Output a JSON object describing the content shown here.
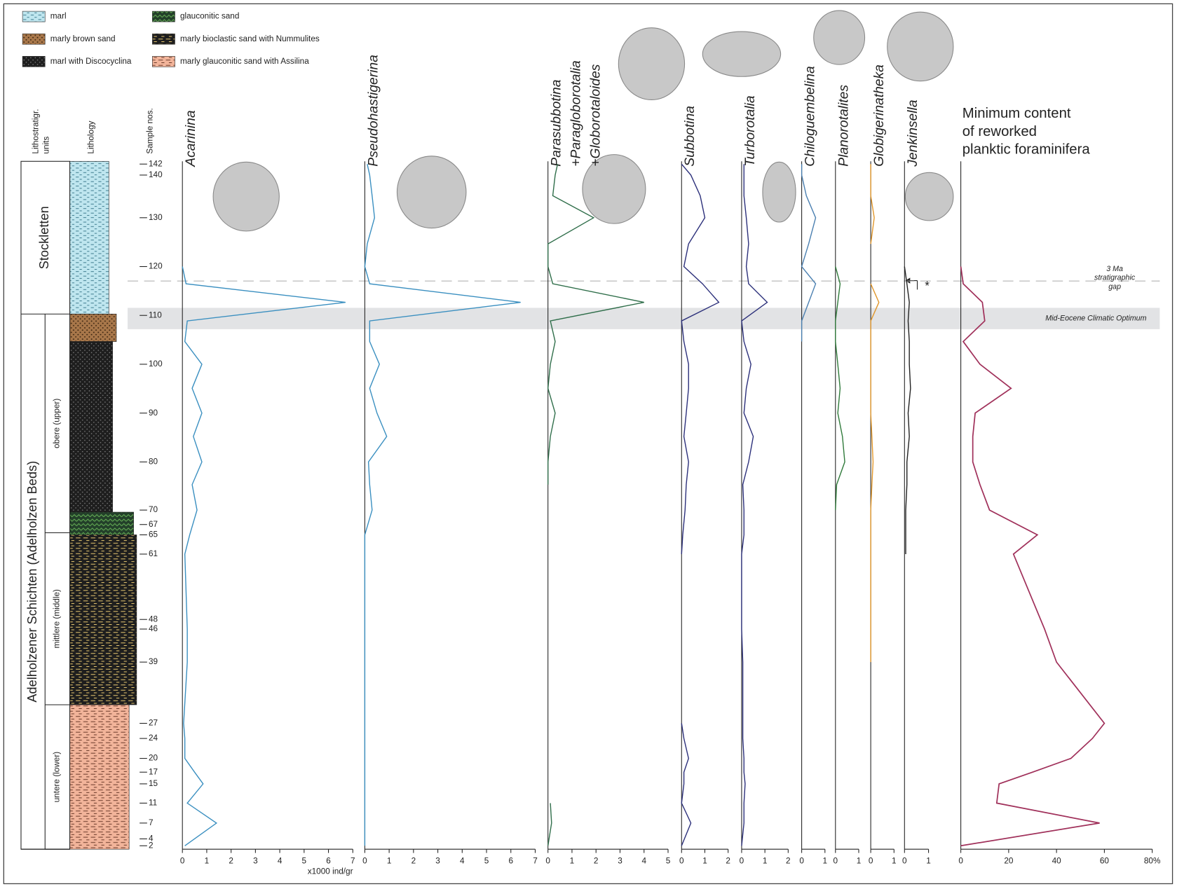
{
  "chart_data": {
    "type": "line",
    "ylim": [
      0,
      100
    ],
    "levels": [
      0.5,
      3.8,
      6.7,
      9.5,
      11.2,
      13.2,
      16.1,
      18.3,
      27.2,
      32.0,
      42.9,
      45.7,
      49.3,
      53,
      56.3,
      60,
      63.4,
      67,
      70.5,
      73.8,
      76.8,
      79.5,
      82.2,
      84.7,
      88,
      91.8,
      95,
      98,
      99.6
    ],
    "yticks": [
      {
        "value": 99.6,
        "label": "142"
      },
      {
        "value": 98.0,
        "label": "140"
      },
      {
        "value": 91.8,
        "label": "130"
      },
      {
        "value": 84.7,
        "label": "120"
      },
      {
        "value": 77.6,
        "label": "110"
      },
      {
        "value": 70.5,
        "label": "100"
      },
      {
        "value": 63.4,
        "label": "90"
      },
      {
        "value": 56.3,
        "label": "80"
      },
      {
        "value": 49.3,
        "label": "70"
      },
      {
        "value": 47.2,
        "label": "67"
      },
      {
        "value": 45.7,
        "label": "65"
      },
      {
        "value": 42.9,
        "label": "61"
      },
      {
        "value": 33.4,
        "label": "48"
      },
      {
        "value": 32.0,
        "label": "46"
      },
      {
        "value": 27.2,
        "label": "39"
      },
      {
        "value": 18.3,
        "label": "27"
      },
      {
        "value": 16.1,
        "label": "24"
      },
      {
        "value": 13.2,
        "label": "20"
      },
      {
        "value": 11.2,
        "label": "17"
      },
      {
        "value": 9.5,
        "label": "15"
      },
      {
        "value": 6.7,
        "label": "11"
      },
      {
        "value": 3.8,
        "label": "7"
      },
      {
        "value": 1.5,
        "label": "4"
      },
      {
        "value": 0.5,
        "label": "2"
      }
    ],
    "lithostrat_header": [
      "Lithostratigr.",
      "units"
    ],
    "lithology_header": "Lithology",
    "sample_header": "Sample nos.",
    "x_unit_label": "x1000 ind/gr",
    "lithology": [
      {
        "label": "marl",
        "beds": [
          [
            77.8,
            100
          ]
        ]
      },
      {
        "label": "marly brown sand",
        "beds": [
          [
            73.8,
            77.8
          ]
        ]
      },
      {
        "label": "marl with Discocyclina",
        "beds": [
          [
            49,
            73.8
          ]
        ]
      },
      {
        "label": "glauconitic sand",
        "beds": [
          [
            45.7,
            49
          ]
        ]
      },
      {
        "label": "marly bioclastic sand with Nummulites",
        "beds": [
          [
            21,
            45.7
          ]
        ]
      },
      {
        "label": "marly glauconitic sand with Assilina",
        "beds": [
          [
            0,
            21
          ]
        ]
      }
    ],
    "formations": [
      {
        "name": "Stockletten",
        "from": 77.8,
        "to": 100
      },
      {
        "name": "Adelholzener Schichten (Adelholzen Beds)",
        "from": 0,
        "to": 77.8
      }
    ],
    "members": [
      {
        "name": "obere (upper)",
        "from": 46,
        "to": 77.8
      },
      {
        "name": "mittlere (middle)",
        "from": 21,
        "to": 46
      },
      {
        "name": "untere (lower)",
        "from": 0,
        "to": 21
      }
    ],
    "panels": [
      {
        "title": [
          "Acarinina"
        ],
        "color": "#3a8fc0",
        "xlim": [
          0,
          7
        ],
        "xticks": [
          0,
          1,
          2,
          3,
          4,
          5,
          6,
          7
        ],
        "values": [
          0.1,
          1.4,
          0.2,
          0.85,
          0.5,
          0.1,
          0.1,
          0.05,
          0.2,
          0.2,
          0.1,
          0.3,
          0.6,
          0.4,
          0.8,
          0.45,
          0.8,
          0.4,
          0.8,
          0.1,
          0.2,
          6.7,
          0.15,
          0,
          null,
          null,
          null,
          null,
          null
        ]
      },
      {
        "title": [
          "Pseudohastigerina"
        ],
        "color": "#3a8fc0",
        "xlim": [
          0,
          7
        ],
        "xticks": [
          0,
          1,
          2,
          3,
          4,
          5,
          6,
          7
        ],
        "values": [
          0,
          0,
          0,
          0,
          0,
          0,
          0,
          0,
          0,
          0,
          0,
          0,
          0.3,
          0.2,
          0.15,
          0.9,
          0.5,
          0.2,
          0.6,
          0.2,
          0.2,
          6.4,
          0.2,
          0,
          0.1,
          0.4,
          0.3,
          0.2,
          0.1
        ]
      },
      {
        "title": [
          "Parasubbotina",
          "+Paragloborotalia",
          "+Globorotaloides"
        ],
        "color": "#2f6e4a",
        "xlim": [
          0,
          5
        ],
        "xticks": [
          0,
          1,
          2,
          3,
          4,
          5
        ],
        "values": [
          0,
          0.15,
          0.1,
          null,
          null,
          null,
          null,
          null,
          null,
          null,
          null,
          null,
          null,
          0,
          0,
          0.1,
          0.3,
          0,
          0.1,
          0.3,
          0.1,
          4.0,
          0.2,
          0,
          0,
          1.9,
          0.2,
          0.3,
          0.4
        ]
      },
      {
        "title": [
          "Subbotina"
        ],
        "color": "#2b2f7a",
        "xlim": [
          0,
          2
        ],
        "xticks": [
          0,
          1,
          2
        ],
        "values": [
          0,
          0.4,
          0,
          0.1,
          0.1,
          0.3,
          0.1,
          0,
          null,
          null,
          0,
          0.05,
          0.15,
          0.2,
          0.3,
          0.1,
          0.2,
          0.3,
          0.3,
          0.1,
          0,
          1.6,
          0.9,
          0.1,
          0.3,
          1.0,
          0.8,
          0.4,
          0
        ]
      },
      {
        "title": [
          "Turborotalia"
        ],
        "color": "#2b2f7a",
        "xlim": [
          0,
          2
        ],
        "xticks": [
          0,
          1,
          2
        ],
        "values": [
          0,
          0.1,
          0.1,
          0.15,
          0.1,
          0.1,
          0.05,
          0.05,
          0.05,
          0,
          0,
          0.1,
          0.1,
          0.05,
          0.3,
          0.5,
          0.1,
          0.2,
          0.4,
          0.1,
          0,
          1.1,
          0.3,
          0.2,
          0.3,
          0.2,
          0.1,
          0.1,
          0.1
        ]
      },
      {
        "title": [
          "Chiloguembelina"
        ],
        "color": "#4a7fb0",
        "xlim": [
          0,
          1
        ],
        "xticks": [
          0,
          1
        ],
        "values": [
          null,
          null,
          null,
          null,
          null,
          null,
          null,
          null,
          null,
          null,
          null,
          null,
          null,
          null,
          null,
          null,
          null,
          null,
          null,
          0,
          0,
          0.3,
          0.6,
          0,
          0.3,
          0.6,
          0.2,
          0,
          0
        ]
      },
      {
        "title": [
          "Planorotalites"
        ],
        "color": "#2f7a3a",
        "xlim": [
          0,
          1
        ],
        "xticks": [
          0,
          1
        ],
        "values": [
          null,
          null,
          null,
          null,
          null,
          null,
          null,
          null,
          null,
          null,
          null,
          null,
          0,
          0.05,
          0.4,
          0.3,
          0.1,
          0.2,
          0.1,
          0,
          0,
          0.1,
          0.2,
          0,
          null,
          null,
          null,
          null,
          null
        ]
      },
      {
        "title": [
          "Globigerinatheka"
        ],
        "color": "#e0962a",
        "xlim": [
          0,
          1
        ],
        "xticks": [
          0,
          1
        ],
        "values": [
          null,
          null,
          null,
          null,
          null,
          null,
          null,
          null,
          0,
          0,
          0,
          0,
          0,
          0.05,
          0.1,
          0.05,
          0,
          0,
          0,
          0,
          0,
          0.35,
          0,
          null,
          0,
          0.15,
          0,
          0,
          0
        ]
      },
      {
        "title": [
          "Jenkinsella"
        ],
        "color": "#222222",
        "xlim": [
          0,
          1
        ],
        "xticks": [
          0,
          1
        ],
        "values": [
          null,
          null,
          null,
          null,
          null,
          null,
          null,
          null,
          null,
          null,
          0.05,
          0.05,
          0.05,
          0.1,
          0.1,
          0.2,
          0.15,
          0.25,
          0.2,
          0.2,
          0.15,
          0.2,
          0.1,
          0,
          null,
          null,
          null,
          null,
          null
        ]
      },
      {
        "title": [
          "Minimum content",
          "of reworked",
          "planktic foraminifera"
        ],
        "color": "#a0305a",
        "xlim": [
          0,
          80
        ],
        "xticks": [
          0,
          20,
          40,
          60,
          {
            "value": 80,
            "label": "80%"
          }
        ],
        "values": [
          0,
          58,
          15,
          16,
          30,
          46,
          55,
          60,
          40,
          35,
          22,
          32,
          12,
          8,
          5,
          5,
          6,
          21,
          8,
          1,
          10,
          9,
          1,
          0,
          null,
          null,
          null,
          null,
          null
        ]
      }
    ],
    "gap": {
      "level": 82.6,
      "text": [
        "3 Ma",
        "stratigraphic",
        "gap"
      ]
    },
    "mecO": {
      "from": 75.6,
      "to": 78.7,
      "text": "Mid-Eocene Climatic Optimum"
    },
    "asterisk": "*"
  }
}
